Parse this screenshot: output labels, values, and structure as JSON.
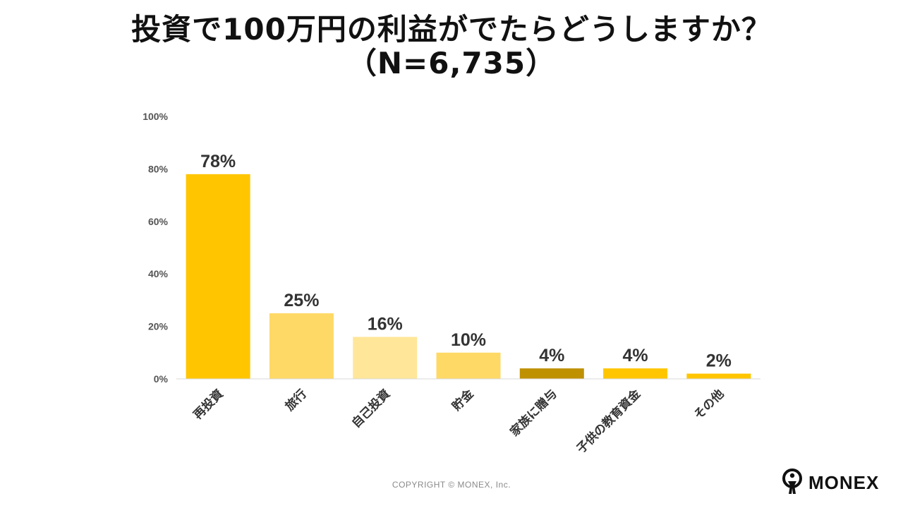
{
  "title": {
    "line1": "投資で100万円の利益がでたらどうしますか？",
    "line2": "（N=6,735）"
  },
  "chart_data": {
    "type": "bar",
    "categories": [
      "再投資",
      "旅行",
      "自己投資",
      "貯金",
      "家族に贈与",
      "子供の教育資金",
      "その他"
    ],
    "values": [
      78,
      25,
      16,
      10,
      4,
      4,
      2
    ],
    "value_labels": [
      "78%",
      "25%",
      "16%",
      "10%",
      "4%",
      "4%",
      "2%"
    ],
    "bar_colors": [
      "#FFC600",
      "#FFD966",
      "#FFE699",
      "#FFD966",
      "#BF9000",
      "#FFC600",
      "#FFC600"
    ],
    "ylim": [
      0,
      100
    ],
    "yticks": [
      0,
      20,
      40,
      60,
      80,
      100
    ],
    "ytick_labels": [
      "0%",
      "20%",
      "40%",
      "60%",
      "80%",
      "100%"
    ],
    "xlabel": "",
    "ylabel": "",
    "grid": false
  },
  "footer": {
    "copyright": "COPYRIGHT © MONEX, Inc.",
    "logo_text": "MONEX"
  }
}
